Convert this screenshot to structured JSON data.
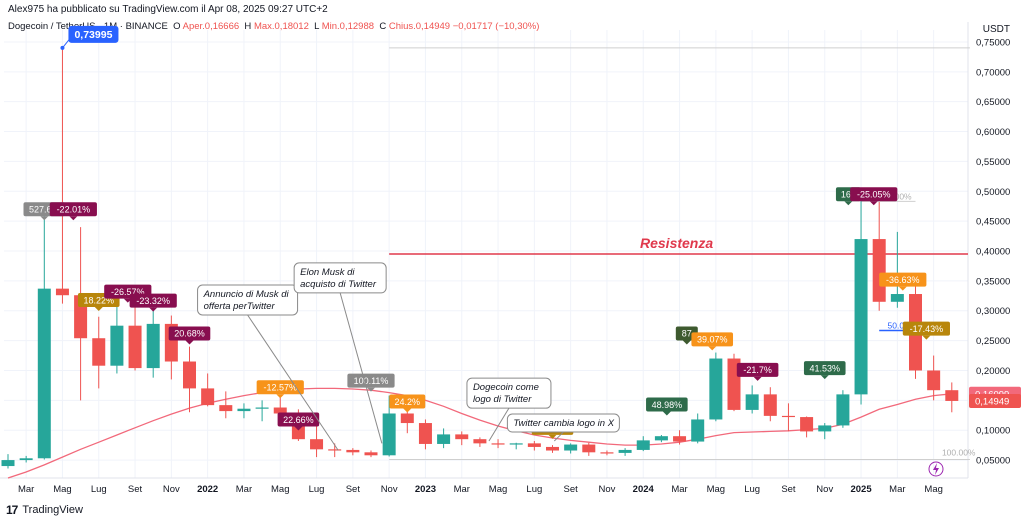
{
  "header": {
    "publisher": "Alex975 ha pubblicato su TradingView.com il Apr 08, 2025 09:27 UTC+2",
    "symbol": "Dogecoin / TetherUS · 1M · BINANCE",
    "open_label": "O",
    "open": "Aper.0,16666",
    "high_label": "H",
    "high": "Max.0,18012",
    "low_label": "L",
    "low": "Min.0,12988",
    "close_label": "C",
    "close": "Chius.0,14949",
    "change": "−0,01717 (−10,30%)"
  },
  "axis_unit": "USDT",
  "footer": {
    "logo": "17",
    "brand": "TradingView"
  },
  "colors": {
    "up": "#26a69a",
    "down": "#ef5350",
    "ma": "#f2697b",
    "resistance": "#e0394c",
    "grid": "#f0f3fa"
  },
  "chart_data": {
    "type": "candlestick",
    "timeframe": "1M",
    "ylim": [
      0.02,
      0.77
    ],
    "yticks": [
      0.05,
      0.1,
      0.15,
      0.2,
      0.25,
      0.3,
      0.35,
      0.4,
      0.45,
      0.5,
      0.55,
      0.6,
      0.65,
      0.7,
      0.75
    ],
    "ytick_labels": [
      "0,05000",
      "0,10000",
      "0,15000",
      "0,20000",
      "0,25000",
      "0,30000",
      "0,35000",
      "0,40000",
      "0,45000",
      "0,50000",
      "0,55000",
      "0,60000",
      "0,65000",
      "0,70000",
      "0,75000"
    ],
    "xtick_labels": [
      "Mar",
      "Mag",
      "Lug",
      "Set",
      "Nov",
      "2022",
      "Mar",
      "Mag",
      "Lug",
      "Set",
      "Nov",
      "2023",
      "Mar",
      "Mag",
      "Lug",
      "Set",
      "Nov",
      "2024",
      "Mar",
      "Mag",
      "Lug",
      "Set",
      "Nov",
      "2025",
      "Mar",
      "Mag"
    ],
    "xtick_index": [
      1,
      3,
      5,
      7,
      9,
      11,
      13,
      15,
      17,
      19,
      21,
      23,
      25,
      27,
      29,
      31,
      33,
      35,
      37,
      39,
      41,
      43,
      45,
      47,
      49,
      51
    ],
    "candles": [
      {
        "o": 0.04,
        "h": 0.06,
        "l": 0.036,
        "c": 0.05
      },
      {
        "o": 0.05,
        "h": 0.057,
        "l": 0.046,
        "c": 0.053
      },
      {
        "o": 0.053,
        "h": 0.48,
        "l": 0.051,
        "c": 0.337
      },
      {
        "o": 0.337,
        "h": 0.74,
        "l": 0.312,
        "c": 0.326
      },
      {
        "o": 0.326,
        "h": 0.44,
        "l": 0.15,
        "c": 0.254
      },
      {
        "o": 0.254,
        "h": 0.29,
        "l": 0.17,
        "c": 0.208
      },
      {
        "o": 0.208,
        "h": 0.32,
        "l": 0.195,
        "c": 0.275
      },
      {
        "o": 0.275,
        "h": 0.333,
        "l": 0.2,
        "c": 0.204
      },
      {
        "o": 0.204,
        "h": 0.31,
        "l": 0.188,
        "c": 0.278
      },
      {
        "o": 0.278,
        "h": 0.292,
        "l": 0.185,
        "c": 0.215
      },
      {
        "o": 0.215,
        "h": 0.24,
        "l": 0.13,
        "c": 0.17
      },
      {
        "o": 0.17,
        "h": 0.195,
        "l": 0.14,
        "c": 0.142
      },
      {
        "o": 0.142,
        "h": 0.165,
        "l": 0.12,
        "c": 0.132
      },
      {
        "o": 0.132,
        "h": 0.145,
        "l": 0.12,
        "c": 0.136
      },
      {
        "o": 0.136,
        "h": 0.15,
        "l": 0.115,
        "c": 0.138
      },
      {
        "o": 0.138,
        "h": 0.155,
        "l": 0.125,
        "c": 0.128
      },
      {
        "o": 0.128,
        "h": 0.135,
        "l": 0.082,
        "c": 0.085
      },
      {
        "o": 0.085,
        "h": 0.11,
        "l": 0.055,
        "c": 0.068
      },
      {
        "o": 0.068,
        "h": 0.078,
        "l": 0.055,
        "c": 0.067
      },
      {
        "o": 0.067,
        "h": 0.07,
        "l": 0.058,
        "c": 0.063
      },
      {
        "o": 0.063,
        "h": 0.066,
        "l": 0.055,
        "c": 0.058
      },
      {
        "o": 0.058,
        "h": 0.158,
        "l": 0.056,
        "c": 0.128
      },
      {
        "o": 0.128,
        "h": 0.145,
        "l": 0.095,
        "c": 0.112
      },
      {
        "o": 0.112,
        "h": 0.118,
        "l": 0.068,
        "c": 0.077
      },
      {
        "o": 0.077,
        "h": 0.103,
        "l": 0.07,
        "c": 0.093
      },
      {
        "o": 0.093,
        "h": 0.098,
        "l": 0.075,
        "c": 0.085
      },
      {
        "o": 0.085,
        "h": 0.088,
        "l": 0.072,
        "c": 0.078
      },
      {
        "o": 0.078,
        "h": 0.085,
        "l": 0.07,
        "c": 0.076
      },
      {
        "o": 0.076,
        "h": 0.079,
        "l": 0.068,
        "c": 0.078
      },
      {
        "o": 0.078,
        "h": 0.082,
        "l": 0.066,
        "c": 0.072
      },
      {
        "o": 0.072,
        "h": 0.075,
        "l": 0.062,
        "c": 0.066
      },
      {
        "o": 0.066,
        "h": 0.078,
        "l": 0.061,
        "c": 0.076
      },
      {
        "o": 0.076,
        "h": 0.079,
        "l": 0.057,
        "c": 0.063
      },
      {
        "o": 0.063,
        "h": 0.066,
        "l": 0.058,
        "c": 0.062
      },
      {
        "o": 0.062,
        "h": 0.07,
        "l": 0.057,
        "c": 0.067
      },
      {
        "o": 0.067,
        "h": 0.09,
        "l": 0.065,
        "c": 0.083
      },
      {
        "o": 0.083,
        "h": 0.092,
        "l": 0.08,
        "c": 0.09
      },
      {
        "o": 0.09,
        "h": 0.1,
        "l": 0.076,
        "c": 0.081
      },
      {
        "o": 0.081,
        "h": 0.128,
        "l": 0.078,
        "c": 0.118
      },
      {
        "o": 0.118,
        "h": 0.23,
        "l": 0.115,
        "c": 0.22
      },
      {
        "o": 0.22,
        "h": 0.228,
        "l": 0.132,
        "c": 0.134
      },
      {
        "o": 0.134,
        "h": 0.175,
        "l": 0.128,
        "c": 0.16
      },
      {
        "o": 0.16,
        "h": 0.172,
        "l": 0.115,
        "c": 0.124
      },
      {
        "o": 0.124,
        "h": 0.145,
        "l": 0.098,
        "c": 0.122
      },
      {
        "o": 0.122,
        "h": 0.123,
        "l": 0.088,
        "c": 0.098
      },
      {
        "o": 0.098,
        "h": 0.112,
        "l": 0.085,
        "c": 0.108
      },
      {
        "o": 0.108,
        "h": 0.167,
        "l": 0.104,
        "c": 0.16
      },
      {
        "o": 0.16,
        "h": 0.485,
        "l": 0.143,
        "c": 0.42
      },
      {
        "o": 0.42,
        "h": 0.482,
        "l": 0.3,
        "c": 0.315
      },
      {
        "o": 0.315,
        "h": 0.432,
        "l": 0.305,
        "c": 0.328
      },
      {
        "o": 0.328,
        "h": 0.345,
        "l": 0.186,
        "c": 0.2
      },
      {
        "o": 0.2,
        "h": 0.225,
        "l": 0.15,
        "c": 0.167
      },
      {
        "o": 0.167,
        "h": 0.18,
        "l": 0.13,
        "c": 0.149
      }
    ],
    "ma": [
      0.02,
      0.03,
      0.042,
      0.055,
      0.068,
      0.08,
      0.092,
      0.104,
      0.116,
      0.127,
      0.137,
      0.145,
      0.152,
      0.158,
      0.163,
      0.167,
      0.169,
      0.17,
      0.17,
      0.169,
      0.167,
      0.163,
      0.158,
      0.15,
      0.14,
      0.128,
      0.117,
      0.107,
      0.099,
      0.092,
      0.087,
      0.083,
      0.08,
      0.077,
      0.075,
      0.075,
      0.077,
      0.08,
      0.085,
      0.091,
      0.096,
      0.097,
      0.098,
      0.099,
      0.101,
      0.103,
      0.11,
      0.122,
      0.135,
      0.143,
      0.152,
      0.158,
      0.161
    ],
    "ma_last_label": "0,16099",
    "last_label": "0,14949",
    "peak_label": "0,73995",
    "peak_index": 3,
    "peak_value": 0.74,
    "resistance": {
      "value": 0.395,
      "from_index": 21,
      "label": "Resistenza"
    },
    "h_lines": [
      {
        "value": 0.74,
        "from_index": 21,
        "to_index": 53,
        "color": "#cfcfcf"
      },
      {
        "value": 0.483,
        "from_index": 47,
        "to_index": 50,
        "color": "#cfcfcf",
        "label": "0.00%"
      },
      {
        "value": 0.267,
        "from_index": 48,
        "to_index": 50,
        "color": "#2962ff",
        "label": "50.00%"
      },
      {
        "value": 0.051,
        "from_index": 21,
        "to_index": 53,
        "color": "#cfcfcf",
        "label": "100.00%"
      }
    ],
    "pct_labels": [
      {
        "i": 2,
        "v": 0.47,
        "text": "527.6%",
        "bg": "#8a8a8a"
      },
      {
        "i": 3.6,
        "v": 0.47,
        "text": "-22.01%",
        "bg": "#880e4f"
      },
      {
        "i": 5,
        "v": 0.318,
        "text": "18.22%",
        "bg": "#b8860b"
      },
      {
        "i": 6.6,
        "v": 0.332,
        "text": "-26.57%",
        "bg": "#880e4f"
      },
      {
        "i": 8,
        "v": 0.317,
        "text": "-23.32%",
        "bg": "#880e4f"
      },
      {
        "i": 10,
        "v": 0.262,
        "text": "20.68%",
        "bg": "#880e4f"
      },
      {
        "i": 15,
        "v": 0.172,
        "text": "-12.57%",
        "bg": "#f7931a"
      },
      {
        "i": 16,
        "v": 0.118,
        "text": "22.66%",
        "bg": "#880e4f"
      },
      {
        "i": 20,
        "v": 0.183,
        "text": "100.11%",
        "bg": "#8a8a8a"
      },
      {
        "i": 22,
        "v": 0.148,
        "text": "24.2%",
        "bg": "#f7931a"
      },
      {
        "i": 30,
        "v": 0.104,
        "text": "14.11%",
        "bg": "#b8860b"
      },
      {
        "i": 36.3,
        "v": 0.143,
        "text": "48.98%",
        "bg": "#2e6b4a"
      },
      {
        "i": 37.4,
        "v": 0.262,
        "text": "87",
        "bg": "#3e5a2f"
      },
      {
        "i": 38.8,
        "v": 0.252,
        "text": "39.07%",
        "bg": "#f7931a"
      },
      {
        "i": 41.3,
        "v": 0.201,
        "text": "-21.7%",
        "bg": "#880e4f"
      },
      {
        "i": 45,
        "v": 0.204,
        "text": "41.53%",
        "bg": "#2e6b4a"
      },
      {
        "i": 46.3,
        "v": 0.495,
        "text": "160",
        "bg": "#2e6b4a"
      },
      {
        "i": 47.7,
        "v": 0.495,
        "text": "-25.05%",
        "bg": "#880e4f"
      },
      {
        "i": 49.3,
        "v": 0.352,
        "text": "-36.63%",
        "bg": "#f7931a"
      },
      {
        "i": 50.6,
        "v": 0.27,
        "text": "-17.43%",
        "bg": "#b8860b"
      }
    ],
    "annotations": [
      {
        "text_lines": [
          "Annuncio di Musk di",
          "offerta perTwitter"
        ],
        "i": 13.2,
        "v": 0.318,
        "pt_i": 18.2,
        "pt_v": 0.066,
        "w": 100,
        "h": 30
      },
      {
        "text_lines": [
          "Elon Musk di",
          "acquisto di Twitter"
        ],
        "i": 18.3,
        "v": 0.355,
        "pt_i": 20.6,
        "pt_v": 0.078,
        "w": 92,
        "h": 30
      },
      {
        "text_lines": [
          "Dogecoin come",
          "logo di Twitter"
        ],
        "i": 27.6,
        "v": 0.162,
        "pt_i": 26.5,
        "pt_v": 0.082,
        "w": 84,
        "h": 30
      },
      {
        "text_lines": [
          "Twitter cambia logo in X"
        ],
        "i": 30.6,
        "v": 0.112,
        "pt_i": 30.1,
        "pt_v": 0.082,
        "w": 112,
        "h": 18
      }
    ]
  }
}
